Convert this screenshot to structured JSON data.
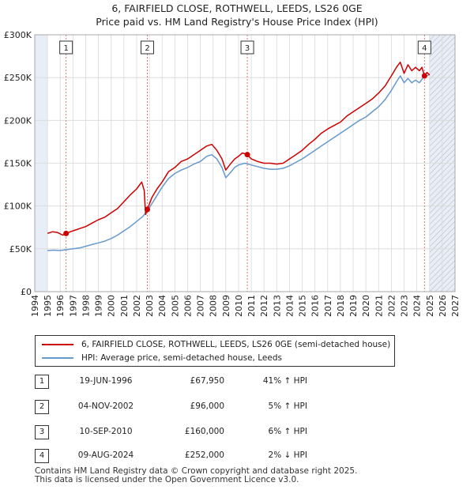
{
  "title_line1": "6, FAIRFIELD CLOSE, ROTHWELL, LEEDS, LS26 0GE",
  "title_line2": "Price paid vs. HM Land Registry's House Price Index (HPI)",
  "colors": {
    "price": "#cc0000",
    "hpi": "#6699cc",
    "shade": "#e8eef8",
    "future_hatch": "#bbbbbb",
    "grid": "#d8d8d8",
    "vline": "#dd6666"
  },
  "legend": {
    "price_label": "6, FAIRFIELD CLOSE, ROTHWELL, LEEDS, LS26 0GE (semi-detached house)",
    "hpi_label": "HPI: Average price, semi-detached house, Leeds"
  },
  "sales": [
    {
      "n": "1",
      "date": "19-JUN-1996",
      "price": "£67,950",
      "hpi": "41% ↑ HPI"
    },
    {
      "n": "2",
      "date": "04-NOV-2002",
      "price": "£96,000",
      "hpi": "5% ↑ HPI"
    },
    {
      "n": "3",
      "date": "10-SEP-2010",
      "price": "£160,000",
      "hpi": "6% ↑ HPI"
    },
    {
      "n": "4",
      "date": "09-AUG-2024",
      "price": "£252,000",
      "hpi": "2% ↓ HPI"
    }
  ],
  "footer_line1": "Contains HM Land Registry data © Crown copyright and database right 2025.",
  "footer_line2": "This data is licensed under the Open Government Licence v3.0.",
  "chart_data": {
    "type": "line",
    "title": "Price paid vs. HM Land Registry's House Price Index (HPI)",
    "xlim": [
      1994,
      2027
    ],
    "ylim": [
      0,
      300000
    ],
    "y_ticks": [
      0,
      50000,
      100000,
      150000,
      200000,
      250000,
      300000
    ],
    "y_tick_labels": [
      "£0",
      "£50K",
      "£100K",
      "£150K",
      "£200K",
      "£250K",
      "£300K"
    ],
    "x_ticks": [
      1994,
      1995,
      1996,
      1997,
      1998,
      1999,
      2000,
      2001,
      2002,
      2003,
      2004,
      2005,
      2006,
      2007,
      2008,
      2009,
      2010,
      2011,
      2012,
      2013,
      2014,
      2015,
      2016,
      2017,
      2018,
      2019,
      2020,
      2021,
      2022,
      2023,
      2024,
      2025,
      2026,
      2027
    ],
    "x_tick_labels": [
      "1994",
      "1995",
      "1996",
      "1997",
      "1998",
      "1999",
      "2000",
      "2001",
      "2002",
      "2003",
      "2004",
      "2005",
      "2006",
      "2007",
      "2008",
      "2009",
      "2010",
      "2011",
      "2012",
      "2013",
      "2014",
      "2015",
      "2016",
      "2017",
      "2018",
      "2019",
      "2020",
      "2021",
      "2022",
      "2023",
      "2024",
      "2025",
      "2026",
      "2027"
    ],
    "data_range": [
      1995.0,
      2025.0
    ],
    "future_from": 2025.0,
    "sale_markers": [
      {
        "label": "1",
        "x": 1996.46,
        "y": 67950
      },
      {
        "label": "2",
        "x": 2002.84,
        "y": 96000
      },
      {
        "label": "3",
        "x": 2010.69,
        "y": 160000
      },
      {
        "label": "4",
        "x": 2024.6,
        "y": 252000
      }
    ],
    "series": [
      {
        "name": "6, FAIRFIELD CLOSE, ROTHWELL, LEEDS, LS26 0GE (semi-detached house)",
        "x": [
          1995.0,
          1995.4,
          1995.8,
          1996.2,
          1996.46,
          1996.8,
          1997.2,
          1997.6,
          1998.0,
          1998.5,
          1999.0,
          1999.5,
          2000.0,
          2000.5,
          2001.0,
          2001.5,
          2002.0,
          2002.4,
          2002.6,
          2002.7,
          2002.84,
          2003.2,
          2003.6,
          2004.0,
          2004.5,
          2005.0,
          2005.5,
          2006.0,
          2006.5,
          2007.0,
          2007.5,
          2007.9,
          2008.3,
          2008.7,
          2009.0,
          2009.3,
          2009.7,
          2010.0,
          2010.3,
          2010.69,
          2011.0,
          2011.5,
          2012.0,
          2012.5,
          2013.0,
          2013.5,
          2014.0,
          2014.5,
          2015.0,
          2015.5,
          2016.0,
          2016.5,
          2017.0,
          2017.5,
          2018.0,
          2018.5,
          2019.0,
          2019.5,
          2020.0,
          2020.5,
          2021.0,
          2021.5,
          2022.0,
          2022.4,
          2022.7,
          2023.0,
          2023.3,
          2023.6,
          2023.9,
          2024.2,
          2024.4,
          2024.6,
          2024.8,
          2025.0
        ],
        "y": [
          68000,
          70000,
          69000,
          66000,
          67950,
          70000,
          72000,
          74000,
          76000,
          80000,
          84000,
          87000,
          92000,
          97000,
          105000,
          113000,
          120000,
          128000,
          118000,
          90000,
          96000,
          110000,
          120000,
          128000,
          140000,
          145000,
          152000,
          155000,
          160000,
          165000,
          170000,
          172000,
          165000,
          155000,
          142000,
          148000,
          155000,
          158000,
          162000,
          160000,
          155000,
          152000,
          150000,
          150000,
          149000,
          150000,
          155000,
          160000,
          165000,
          172000,
          178000,
          185000,
          190000,
          194000,
          198000,
          205000,
          210000,
          215000,
          220000,
          225000,
          232000,
          240000,
          252000,
          262000,
          268000,
          255000,
          265000,
          258000,
          262000,
          258000,
          262000,
          252000,
          256000,
          253000
        ]
      },
      {
        "name": "HPI: Average price, semi-detached house, Leeds",
        "x": [
          1995.0,
          1995.5,
          1996.0,
          1996.5,
          1997.0,
          1997.5,
          1998.0,
          1998.5,
          1999.0,
          1999.5,
          2000.0,
          2000.5,
          2001.0,
          2001.5,
          2002.0,
          2002.5,
          2003.0,
          2003.5,
          2004.0,
          2004.5,
          2005.0,
          2005.5,
          2006.0,
          2006.5,
          2007.0,
          2007.5,
          2007.9,
          2008.3,
          2008.7,
          2009.0,
          2009.3,
          2009.7,
          2010.0,
          2010.5,
          2011.0,
          2011.5,
          2012.0,
          2012.5,
          2013.0,
          2013.5,
          2014.0,
          2014.5,
          2015.0,
          2015.5,
          2016.0,
          2016.5,
          2017.0,
          2017.5,
          2018.0,
          2018.5,
          2019.0,
          2019.5,
          2020.0,
          2020.5,
          2021.0,
          2021.5,
          2022.0,
          2022.4,
          2022.7,
          2023.0,
          2023.3,
          2023.6,
          2023.9,
          2024.2,
          2024.5,
          2024.8,
          2025.0
        ],
        "y": [
          48000,
          48500,
          48000,
          49000,
          50000,
          51000,
          53000,
          55000,
          57000,
          59000,
          62000,
          66000,
          71000,
          76000,
          82000,
          88000,
          98000,
          110000,
          122000,
          132000,
          138000,
          142000,
          145000,
          149000,
          152000,
          158000,
          160000,
          155000,
          145000,
          133000,
          138000,
          145000,
          148000,
          150000,
          148000,
          146000,
          144000,
          143000,
          143000,
          144000,
          147000,
          151000,
          155000,
          160000,
          165000,
          170000,
          175000,
          180000,
          185000,
          190000,
          195000,
          200000,
          204000,
          210000,
          216000,
          224000,
          235000,
          245000,
          252000,
          244000,
          249000,
          244000,
          247000,
          244000,
          250000,
          252000,
          254000
        ]
      }
    ]
  },
  "placeholder": ""
}
